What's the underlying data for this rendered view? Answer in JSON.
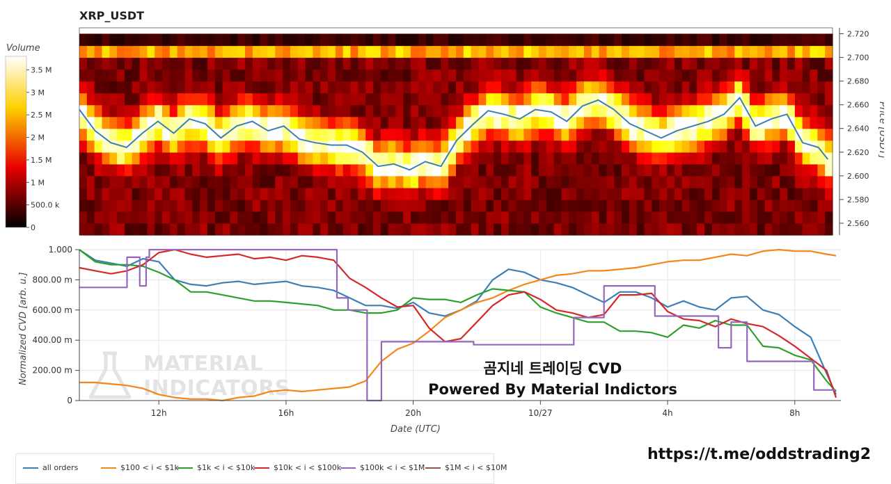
{
  "header": {
    "title": "XRP_USDT"
  },
  "colorbar": {
    "title": "Volume",
    "ticks": [
      {
        "value": 0,
        "label": "0"
      },
      {
        "value": 500000,
        "label": "500.0 k"
      },
      {
        "value": 1000000,
        "label": "1 M"
      },
      {
        "value": 1500000,
        "label": "1.5 M"
      },
      {
        "value": 2000000,
        "label": "2 M"
      },
      {
        "value": 2500000,
        "label": "2.5 M"
      },
      {
        "value": 3000000,
        "label": "3 M"
      },
      {
        "value": 3500000,
        "label": "3.5 M"
      }
    ],
    "max": 3800000
  },
  "overlay": {
    "title": "곰지네 트레이딩 CVD",
    "subtitle": "Powered By Material Indictors",
    "link": "https://t.me/oddstrading2",
    "watermark_line1": "MATERIAL",
    "watermark_line2": "INDICATORS",
    "watermark_icon": "flask-icon"
  },
  "chart_data": [
    {
      "type": "heatmap",
      "title": "XRP_USDT",
      "ylabel": "Price [USDT]",
      "ylim": [
        2.55,
        2.725
      ],
      "y_ticks": [
        "2.560",
        "2.580",
        "2.600",
        "2.620",
        "2.640",
        "2.660",
        "2.680",
        "2.700",
        "2.720"
      ],
      "price_levels": [
        2.555,
        2.565,
        2.575,
        2.585,
        2.595,
        2.605,
        2.615,
        2.625,
        2.635,
        2.645,
        2.655,
        2.665,
        2.675,
        2.685,
        2.695,
        2.705,
        2.715
      ],
      "time_columns": 100,
      "colormap": "hot",
      "volume_unit": "coins",
      "price_line": {
        "color": "#3b7fb6",
        "x_hours": [
          9.5,
          10,
          10.5,
          11,
          11.5,
          12,
          12.5,
          13,
          13.5,
          14,
          14.5,
          15,
          15.5,
          16,
          16.5,
          17,
          17.5,
          18,
          18.5,
          19,
          19.5,
          20,
          20.5,
          21,
          21.5,
          22,
          22.5,
          23,
          23.5,
          24,
          24.5,
          25,
          25.5,
          26,
          26.5,
          27,
          27.5,
          28,
          28.5,
          29,
          29.5,
          30,
          30.5,
          31,
          31.5,
          32,
          32.5,
          33,
          33.3
        ],
        "values": [
          2.656,
          2.638,
          2.628,
          2.624,
          2.636,
          2.646,
          2.636,
          2.648,
          2.644,
          2.632,
          2.642,
          2.646,
          2.638,
          2.642,
          2.631,
          2.628,
          2.626,
          2.626,
          2.62,
          2.608,
          2.61,
          2.605,
          2.612,
          2.608,
          2.63,
          2.643,
          2.655,
          2.652,
          2.648,
          2.656,
          2.654,
          2.646,
          2.659,
          2.664,
          2.656,
          2.644,
          2.638,
          2.632,
          2.638,
          2.642,
          2.646,
          2.652,
          2.666,
          2.642,
          2.648,
          2.652,
          2.628,
          2.624,
          2.614
        ]
      }
    },
    {
      "type": "line",
      "xlabel": "Date (UTC)",
      "ylabel": "Normalized CVD [arb. u.]",
      "ylim": [
        0,
        1
      ],
      "xlim": [
        9.5,
        33.45
      ],
      "grid": true,
      "y_ticks": [
        {
          "value": 0,
          "label": "0"
        },
        {
          "value": 0.2,
          "label": "200.00 m"
        },
        {
          "value": 0.4,
          "label": "400.00 m"
        },
        {
          "value": 0.6,
          "label": "600.00 m"
        },
        {
          "value": 0.8,
          "label": "800.00 m"
        },
        {
          "value": 1.0,
          "label": "1.000"
        }
      ],
      "x_ticks": [
        {
          "value": 12,
          "label": "12h"
        },
        {
          "value": 16,
          "label": "16h"
        },
        {
          "value": 20,
          "label": "20h"
        },
        {
          "value": 24,
          "label": "10/27"
        },
        {
          "value": 28,
          "label": "4h"
        },
        {
          "value": 32,
          "label": "8h"
        }
      ],
      "legend_position": "bottom-left",
      "series": [
        {
          "name": "all orders",
          "color": "#3b7fb6",
          "step": false,
          "x": [
            9.5,
            10,
            10.5,
            11,
            11.5,
            12,
            12.5,
            13,
            13.5,
            14,
            14.5,
            15,
            15.5,
            16,
            16.5,
            17,
            17.5,
            18,
            18.5,
            19,
            19.5,
            20,
            20.5,
            21,
            21.5,
            22,
            22.5,
            23,
            23.5,
            24,
            24.5,
            25,
            25.5,
            26,
            26.5,
            27,
            27.5,
            28,
            28.5,
            29,
            29.5,
            30,
            30.5,
            31,
            31.5,
            32,
            32.5,
            33,
            33.3
          ],
          "y": [
            1.0,
            0.93,
            0.91,
            0.89,
            0.94,
            0.92,
            0.8,
            0.77,
            0.76,
            0.78,
            0.79,
            0.77,
            0.78,
            0.79,
            0.76,
            0.75,
            0.73,
            0.68,
            0.63,
            0.63,
            0.61,
            0.65,
            0.58,
            0.56,
            0.6,
            0.66,
            0.8,
            0.87,
            0.85,
            0.8,
            0.78,
            0.75,
            0.7,
            0.65,
            0.72,
            0.72,
            0.68,
            0.62,
            0.66,
            0.62,
            0.6,
            0.68,
            0.69,
            0.6,
            0.57,
            0.49,
            0.42,
            0.18,
            0.04
          ]
        },
        {
          "name": "$100 < i < $1k",
          "color": "#f58518",
          "step": false,
          "x": [
            9.5,
            10,
            10.5,
            11,
            11.5,
            12,
            12.5,
            13,
            13.5,
            14,
            14.5,
            15,
            15.5,
            16,
            16.5,
            17,
            17.5,
            18,
            18.5,
            19,
            19.5,
            20,
            20.5,
            21,
            21.5,
            22,
            22.5,
            23,
            23.5,
            24,
            24.5,
            25,
            25.5,
            26,
            26.5,
            27,
            27.5,
            28,
            28.5,
            29,
            29.5,
            30,
            30.5,
            31,
            31.5,
            32,
            32.5,
            33,
            33.3
          ],
          "y": [
            0.12,
            0.12,
            0.11,
            0.1,
            0.08,
            0.04,
            0.02,
            0.01,
            0.01,
            0.0,
            0.02,
            0.03,
            0.06,
            0.07,
            0.06,
            0.07,
            0.08,
            0.09,
            0.13,
            0.26,
            0.34,
            0.38,
            0.46,
            0.55,
            0.6,
            0.65,
            0.68,
            0.73,
            0.77,
            0.8,
            0.83,
            0.84,
            0.86,
            0.86,
            0.87,
            0.88,
            0.9,
            0.92,
            0.93,
            0.93,
            0.95,
            0.97,
            0.96,
            0.99,
            1.0,
            0.99,
            0.99,
            0.97,
            0.96
          ]
        },
        {
          "name": "$1k < i < $10k",
          "color": "#2ca02c",
          "step": false,
          "x": [
            9.5,
            10,
            10.5,
            11,
            11.5,
            12,
            12.5,
            13,
            13.5,
            14,
            14.5,
            15,
            15.5,
            16,
            16.5,
            17,
            17.5,
            18,
            18.5,
            19,
            19.5,
            20,
            20.5,
            21,
            21.5,
            22,
            22.5,
            23,
            23.5,
            24,
            24.5,
            25,
            25.5,
            26,
            26.5,
            27,
            27.5,
            28,
            28.5,
            29,
            29.5,
            30,
            30.5,
            31,
            31.5,
            32,
            32.5,
            33,
            33.3
          ],
          "y": [
            1.0,
            0.92,
            0.9,
            0.9,
            0.89,
            0.85,
            0.8,
            0.72,
            0.72,
            0.7,
            0.68,
            0.66,
            0.66,
            0.65,
            0.64,
            0.63,
            0.6,
            0.6,
            0.58,
            0.58,
            0.6,
            0.68,
            0.67,
            0.67,
            0.65,
            0.7,
            0.74,
            0.73,
            0.72,
            0.62,
            0.58,
            0.55,
            0.52,
            0.52,
            0.46,
            0.46,
            0.45,
            0.42,
            0.5,
            0.48,
            0.53,
            0.5,
            0.5,
            0.36,
            0.35,
            0.3,
            0.27,
            0.13,
            0.06
          ]
        },
        {
          "name": "$10k < i < $100k",
          "color": "#d62728",
          "step": false,
          "x": [
            9.5,
            10,
            10.5,
            11,
            11.5,
            12,
            12.5,
            13,
            13.5,
            14,
            14.5,
            15,
            15.5,
            16,
            16.5,
            17,
            17.5,
            18,
            18.5,
            19,
            19.5,
            20,
            20.5,
            21,
            21.5,
            22,
            22.5,
            23,
            23.5,
            24,
            24.5,
            25,
            25.5,
            26,
            26.5,
            27,
            27.5,
            28,
            28.5,
            29,
            29.5,
            30,
            30.5,
            31,
            31.5,
            32,
            32.5,
            33,
            33.3
          ],
          "y": [
            0.88,
            0.86,
            0.84,
            0.86,
            0.9,
            0.98,
            1.0,
            0.97,
            0.95,
            0.96,
            0.97,
            0.94,
            0.95,
            0.93,
            0.96,
            0.95,
            0.93,
            0.81,
            0.75,
            0.68,
            0.62,
            0.63,
            0.48,
            0.39,
            0.41,
            0.52,
            0.63,
            0.7,
            0.72,
            0.67,
            0.6,
            0.58,
            0.55,
            0.57,
            0.7,
            0.7,
            0.71,
            0.59,
            0.54,
            0.53,
            0.49,
            0.54,
            0.51,
            0.49,
            0.43,
            0.36,
            0.28,
            0.2,
            0.02
          ]
        },
        {
          "name": "$100k < i < $1M",
          "color": "#9467bd",
          "step": true,
          "x": [
            9.5,
            11.0,
            11.4,
            11.6,
            11.7,
            17.6,
            17.95,
            18.55,
            19.0,
            21.9,
            23.7,
            24.2,
            25.05,
            25.5,
            26.0,
            26.2,
            27.25,
            27.6,
            28.1,
            28.75,
            29.6,
            30.0,
            30.5,
            32.0,
            32.6,
            33.3
          ],
          "y": [
            0.75,
            0.95,
            0.76,
            0.95,
            1.0,
            0.68,
            0.6,
            0.0,
            0.39,
            0.37,
            0.37,
            0.37,
            0.55,
            0.55,
            0.76,
            0.76,
            0.76,
            0.56,
            0.56,
            0.56,
            0.35,
            0.52,
            0.26,
            0.26,
            0.07,
            0.07
          ]
        },
        {
          "name": "$1M < i < $10M",
          "color": "#8c564b",
          "step": false,
          "x": [],
          "y": []
        }
      ]
    }
  ]
}
